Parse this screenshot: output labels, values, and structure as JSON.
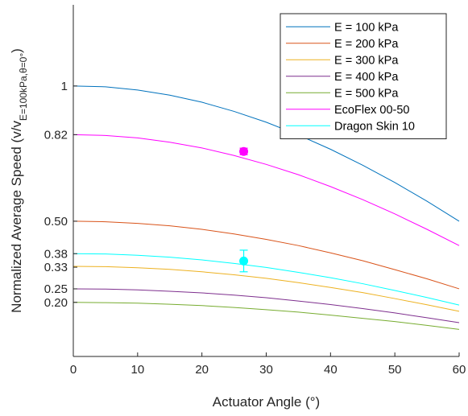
{
  "chart_data": {
    "type": "line",
    "xlabel": "Actuator Angle (°)",
    "ylabel": "Normalized Average Speed (v/v",
    "ylabel_subscript": "E=100kPa,θ=0°",
    "ylabel_close": ")",
    "xlim": [
      0,
      60
    ],
    "ylim": [
      0,
      1.3
    ],
    "xticks": [
      0,
      10,
      20,
      30,
      40,
      50,
      60
    ],
    "yticks": [
      0.2,
      0.25,
      0.33,
      0.38,
      0.5,
      0.82,
      1
    ],
    "ytick_labels": [
      "0.20",
      "0.25",
      "0.33",
      "0.38",
      "0.50",
      "0.82",
      "1"
    ],
    "grid": false,
    "legend_position": "top-right",
    "x": [
      0,
      5,
      10,
      15,
      20,
      25,
      30,
      35,
      40,
      45,
      50,
      55,
      60
    ],
    "series": [
      {
        "name": "E = 100 kPa",
        "color": "#0072BD",
        "values": [
          1.0,
          0.997,
          0.985,
          0.966,
          0.94,
          0.906,
          0.866,
          0.819,
          0.766,
          0.707,
          0.643,
          0.574,
          0.5
        ]
      },
      {
        "name": "E = 200 kPa",
        "color": "#D95319",
        "values": [
          0.5,
          0.498,
          0.492,
          0.483,
          0.47,
          0.453,
          0.433,
          0.41,
          0.383,
          0.354,
          0.321,
          0.287,
          0.25
        ]
      },
      {
        "name": "E = 300 kPa",
        "color": "#EDB120",
        "values": [
          0.333,
          0.332,
          0.328,
          0.322,
          0.313,
          0.302,
          0.289,
          0.273,
          0.255,
          0.236,
          0.214,
          0.191,
          0.167
        ]
      },
      {
        "name": "E = 400 kPa",
        "color": "#7E2F8E",
        "values": [
          0.25,
          0.249,
          0.246,
          0.241,
          0.235,
          0.227,
          0.217,
          0.205,
          0.192,
          0.177,
          0.161,
          0.143,
          0.125
        ]
      },
      {
        "name": "E = 500 kPa",
        "color": "#77AC30",
        "values": [
          0.2,
          0.199,
          0.197,
          0.193,
          0.188,
          0.181,
          0.173,
          0.164,
          0.153,
          0.141,
          0.129,
          0.115,
          0.1
        ]
      },
      {
        "name": "EcoFlex 00-50",
        "color": "#FF00FF",
        "values": [
          0.82,
          0.817,
          0.808,
          0.792,
          0.771,
          0.743,
          0.71,
          0.672,
          0.628,
          0.58,
          0.527,
          0.47,
          0.41
        ]
      },
      {
        "name": "Dragon Skin 10",
        "color": "#00FFFF",
        "values": [
          0.38,
          0.379,
          0.374,
          0.367,
          0.357,
          0.344,
          0.329,
          0.311,
          0.291,
          0.269,
          0.244,
          0.218,
          0.19
        ]
      }
    ],
    "points": [
      {
        "series": "EcoFlex 00-50",
        "x": 26.5,
        "y": 0.758,
        "err": 0.012,
        "color": "#FF00FF"
      },
      {
        "series": "Dragon Skin 10",
        "x": 26.5,
        "y": 0.353,
        "err": 0.04,
        "color": "#00FFFF"
      }
    ]
  }
}
